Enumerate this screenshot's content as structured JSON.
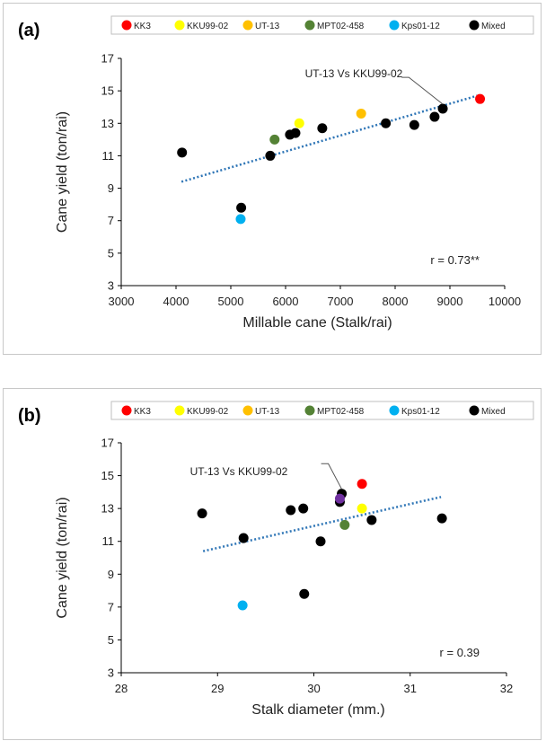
{
  "legend": [
    {
      "name": "KK3",
      "color": "#ff0000"
    },
    {
      "name": "KKU99-02",
      "color": "#ffff00"
    },
    {
      "name": "UT-13",
      "color": "#ffc000"
    },
    {
      "name": "MPT02-458",
      "color": "#548235"
    },
    {
      "name": "Kps01-12",
      "color": "#00b0f0"
    },
    {
      "name": "Mixed",
      "color": "#000000"
    }
  ],
  "chart_data": [
    {
      "type": "scatter",
      "panel_label": "(a)",
      "xlabel": "Millable cane (Stalk/rai)",
      "ylabel": "Cane yield (ton/rai)",
      "xlim": [
        3000,
        10000
      ],
      "ylim": [
        3,
        17
      ],
      "xticks": [
        "3000",
        "4000",
        "5000",
        "6000",
        "7000",
        "8000",
        "9000",
        "10000"
      ],
      "yticks": [
        "3",
        "5",
        "7",
        "9",
        "11",
        "13",
        "15",
        "17"
      ],
      "grid": false,
      "legend_position": "top",
      "annotation": "UT-13 Vs KKU99-02",
      "r_text": "r = 0.73**",
      "trendline": [
        [
          4100,
          9.4
        ],
        [
          9500,
          14.7
        ]
      ],
      "points": [
        {
          "x": 9550,
          "y": 14.5,
          "series": "KK3"
        },
        {
          "x": 6250,
          "y": 13.0,
          "series": "KKU99-02"
        },
        {
          "x": 7380,
          "y": 13.6,
          "series": "UT-13"
        },
        {
          "x": 5800,
          "y": 12.0,
          "series": "MPT02-458"
        },
        {
          "x": 5180,
          "y": 7.1,
          "series": "Kps01-12"
        },
        {
          "x": 4110,
          "y": 11.2,
          "series": "Mixed"
        },
        {
          "x": 5190,
          "y": 7.8,
          "series": "Mixed"
        },
        {
          "x": 5720,
          "y": 11.0,
          "series": "Mixed"
        },
        {
          "x": 6080,
          "y": 12.3,
          "series": "Mixed"
        },
        {
          "x": 6180,
          "y": 12.4,
          "series": "Mixed"
        },
        {
          "x": 6670,
          "y": 12.7,
          "series": "Mixed"
        },
        {
          "x": 7830,
          "y": 13.0,
          "series": "Mixed"
        },
        {
          "x": 8350,
          "y": 12.9,
          "series": "Mixed"
        },
        {
          "x": 8720,
          "y": 13.4,
          "series": "Mixed"
        },
        {
          "x": 8870,
          "y": 13.9,
          "series": "Mixed"
        }
      ],
      "annotation_target": {
        "x": 8870,
        "y": 13.9
      },
      "annotation_anchor": {
        "x": 8250,
        "y": 15.5
      }
    },
    {
      "type": "scatter",
      "panel_label": "(b)",
      "xlabel": "Stalk diameter (mm.)",
      "ylabel": "Cane yield (ton/rai)",
      "xlim": [
        28,
        32
      ],
      "ylim": [
        3,
        17
      ],
      "xticks": [
        "28",
        "29",
        "30",
        "31",
        "32"
      ],
      "yticks": [
        "3",
        "5",
        "7",
        "9",
        "11",
        "13",
        "15",
        "17"
      ],
      "grid": false,
      "legend_position": "top",
      "annotation": "UT-13 Vs KKU99-02",
      "r_text": "r = 0.39",
      "trendline": [
        [
          28.85,
          10.4
        ],
        [
          31.32,
          13.7
        ]
      ],
      "points": [
        {
          "x": 30.5,
          "y": 14.5,
          "series": "KK3"
        },
        {
          "x": 30.5,
          "y": 13.0,
          "series": "KKU99-02"
        },
        {
          "x": 30.32,
          "y": 12.0,
          "series": "MPT02-458"
        },
        {
          "x": 29.26,
          "y": 7.1,
          "series": "Kps01-12"
        },
        {
          "x": 28.84,
          "y": 12.7,
          "series": "Mixed"
        },
        {
          "x": 29.27,
          "y": 11.2,
          "series": "Mixed"
        },
        {
          "x": 29.76,
          "y": 12.9,
          "series": "Mixed"
        },
        {
          "x": 29.89,
          "y": 13.0,
          "series": "Mixed"
        },
        {
          "x": 29.9,
          "y": 7.8,
          "series": "Mixed"
        },
        {
          "x": 30.07,
          "y": 11.0,
          "series": "Mixed"
        },
        {
          "x": 30.27,
          "y": 13.4,
          "series": "Mixed"
        },
        {
          "x": 30.29,
          "y": 13.9,
          "series": "Mixed"
        },
        {
          "x": 30.6,
          "y": 12.3,
          "series": "Mixed"
        },
        {
          "x": 31.33,
          "y": 12.4,
          "series": "Mixed"
        }
      ],
      "overlap_point": {
        "x": 30.27,
        "y": 13.6,
        "color": "#7030a0"
      },
      "annotation_target": {
        "x": 30.29,
        "y": 13.9
      },
      "annotation_anchor": {
        "x": 30.15,
        "y": 15.4
      }
    }
  ]
}
